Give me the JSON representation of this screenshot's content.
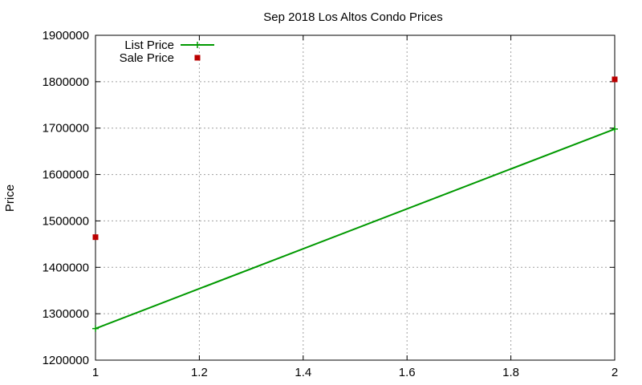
{
  "chart_data": {
    "type": "line",
    "title": "Sep 2018 Los Altos Condo Prices",
    "xlabel": "",
    "ylabel": "Price",
    "xlim": [
      1,
      2
    ],
    "ylim": [
      1200000,
      1900000
    ],
    "xticks": [
      "1",
      "1.2",
      "1.4",
      "1.6",
      "1.8",
      "2"
    ],
    "xtick_values": [
      1,
      1.2,
      1.4,
      1.6,
      1.8,
      2
    ],
    "yticks": [
      "1200000",
      "1300000",
      "1400000",
      "1500000",
      "1600000",
      "1700000",
      "1800000",
      "1900000"
    ],
    "ytick_values": [
      1200000,
      1300000,
      1400000,
      1500000,
      1600000,
      1700000,
      1800000,
      1900000
    ],
    "grid": true,
    "legend_position": "top-left",
    "series": [
      {
        "name": "List Price",
        "style": "line-with-cross-markers",
        "color": "#009900",
        "x": [
          1,
          2
        ],
        "y": [
          1268000,
          1698000
        ]
      },
      {
        "name": "Sale Price",
        "style": "square-markers",
        "color": "#bb0000",
        "x": [
          1,
          2
        ],
        "y": [
          1465000,
          1805000
        ]
      }
    ]
  }
}
